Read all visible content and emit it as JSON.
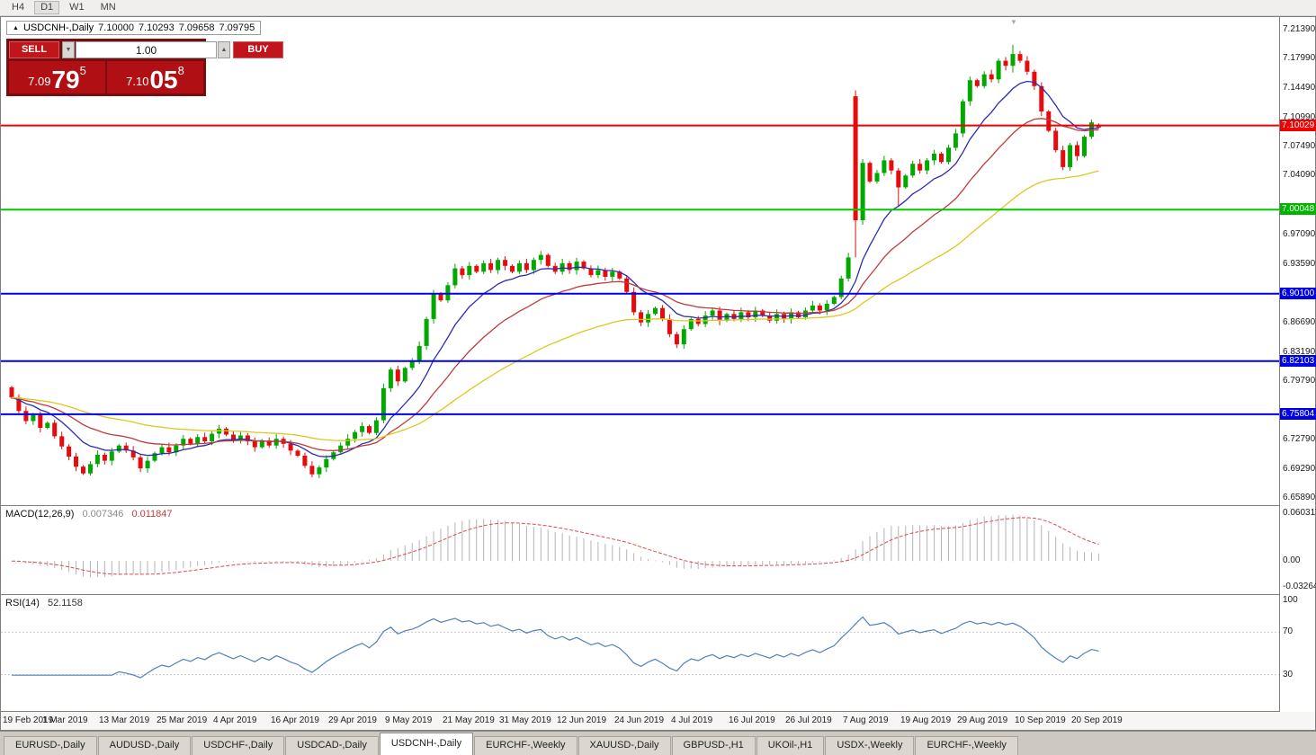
{
  "toolbar": {
    "timeframes": [
      "H4",
      "D1",
      "W1",
      "MN"
    ],
    "active": "D1"
  },
  "chart_header": {
    "expander_icon": "▲",
    "shift_marker_icon": "▼",
    "symbol": "USDCNH-,Daily",
    "open": "7.10000",
    "high": "7.10293",
    "low": "7.09658",
    "close": "7.09795"
  },
  "trade_panel": {
    "sell_label": "SELL",
    "buy_label": "BUY",
    "lot_value": "1.00",
    "lot_down_icon": "▼",
    "lot_up_icon": "▲",
    "sell_price": {
      "base": "7.09",
      "big": "79",
      "sup": "5"
    },
    "buy_price": {
      "base": "7.10",
      "big": "05",
      "sup": "8"
    }
  },
  "price_axis": {
    "ticks": [
      "7.21390",
      "7.17990",
      "7.14490",
      "7.10990",
      "7.07490",
      "7.04090",
      "6.97090",
      "6.93590",
      "6.86690",
      "6.83190",
      "6.79790",
      "6.72790",
      "6.69290",
      "6.65890"
    ],
    "badges": [
      {
        "price": 7.10029,
        "text": "7.10029",
        "color": "#f00000"
      },
      {
        "price": 7.00048,
        "text": "7.00048",
        "color": "#00b400"
      },
      {
        "price": 6.901,
        "text": "6.90100",
        "color": "#0000e8"
      },
      {
        "price": 6.82103,
        "text": "6.82103",
        "color": "#0000e8"
      },
      {
        "price": 6.75804,
        "text": "6.75804",
        "color": "#0000e8"
      }
    ]
  },
  "macd": {
    "label": "MACD(12,26,9)",
    "value_macd": "0.007346",
    "value_signal": "0.011847",
    "axis": [
      "0.060317",
      "0.00",
      "-0.032648"
    ],
    "histogram_color": "#b4b4b4",
    "signal_color": "#dd4b4b"
  },
  "rsi": {
    "label": "RSI(14)",
    "value": "52.1158",
    "axis": [
      100,
      70,
      30
    ],
    "levels": [
      70,
      30
    ],
    "line_color": "#4f81bd"
  },
  "tab_bar": {
    "tabs": [
      "EURUSD-,Daily",
      "AUDUSD-,Daily",
      "USDCHF-,Daily",
      "USDCAD-,Daily",
      "USDCNH-,Daily",
      "EURCHF-,Weekly",
      "XAUUSD-,Daily",
      "GBPUSD-,H1",
      "UKOil-,H1",
      "USDX-,Weekly",
      "EURCHF-,Weekly"
    ],
    "active_index": 4
  },
  "chart_data": {
    "type": "candlestick",
    "title": "USDCNH-,Daily",
    "ylim": [
      6.6504,
      7.2288
    ],
    "x_labels": [
      "19 Feb 2019",
      "1 Mar 2019",
      "13 Mar 2019",
      "25 Mar 2019",
      "4 Apr 2019",
      "16 Apr 2019",
      "29 Apr 2019",
      "9 May 2019",
      "21 May 2019",
      "31 May 2019",
      "12 Jun 2019",
      "24 Jun 2019",
      "4 Jul 2019",
      "16 Jul 2019",
      "26 Jul 2019",
      "7 Aug 2019",
      "19 Aug 2019",
      "29 Aug 2019",
      "10 Sep 2019",
      "20 Sep 2019"
    ],
    "bars_per_label": 8,
    "first_open": 6.79,
    "closes": [
      6.778,
      6.762,
      6.75,
      6.757,
      6.742,
      6.748,
      6.732,
      6.72,
      6.708,
      6.696,
      6.688,
      6.699,
      6.71,
      6.703,
      6.714,
      6.721,
      6.715,
      6.707,
      6.694,
      6.703,
      6.712,
      6.719,
      6.713,
      6.721,
      6.729,
      6.723,
      6.731,
      6.726,
      6.735,
      6.741,
      6.734,
      6.727,
      6.733,
      6.726,
      6.719,
      6.727,
      6.721,
      6.729,
      6.723,
      6.715,
      6.709,
      6.697,
      6.687,
      6.695,
      6.705,
      6.713,
      6.721,
      6.729,
      6.737,
      6.744,
      6.736,
      6.751,
      6.789,
      6.811,
      6.797,
      6.813,
      6.821,
      6.839,
      6.871,
      6.901,
      6.893,
      6.911,
      6.931,
      6.923,
      6.934,
      6.927,
      6.937,
      6.929,
      6.941,
      6.934,
      6.927,
      6.937,
      6.929,
      6.941,
      6.947,
      6.934,
      6.927,
      6.937,
      6.929,
      6.939,
      6.931,
      6.923,
      6.929,
      6.921,
      6.927,
      6.919,
      6.903,
      6.879,
      6.867,
      6.877,
      6.884,
      6.871,
      6.853,
      6.841,
      6.859,
      6.871,
      6.865,
      6.875,
      6.881,
      6.869,
      6.877,
      6.871,
      6.879,
      6.873,
      6.881,
      6.875,
      6.869,
      6.877,
      6.871,
      6.879,
      6.873,
      6.881,
      6.887,
      6.881,
      6.889,
      6.897,
      6.919,
      6.944,
      6.988,
      7.056,
      7.034,
      7.044,
      7.059,
      7.047,
      7.027,
      7.041,
      7.055,
      7.047,
      7.059,
      7.067,
      7.057,
      7.074,
      7.091,
      7.129,
      7.154,
      7.147,
      7.161,
      7.155,
      7.177,
      7.171,
      7.185,
      7.177,
      7.164,
      7.147,
      7.117,
      7.094,
      7.071,
      7.051,
      7.077,
      7.064,
      7.087,
      7.104,
      7.098
    ],
    "special_bars": {
      "118": {
        "o": 7.135,
        "h": 7.142,
        "l": 6.944,
        "c": 6.988
      },
      "124": {
        "o": 7.047,
        "h": 7.05,
        "l": 7.005,
        "c": 7.027
      },
      "140": {
        "o": 7.171,
        "h": 7.196,
        "l": 7.163,
        "c": 7.185
      },
      "152": {
        "o": 7.1,
        "h": 7.10293,
        "l": 7.09658,
        "c": 7.09795
      }
    },
    "up_color": "#00a800",
    "down_color": "#e60c0c",
    "moving_averages": [
      {
        "period": 10,
        "color": "#2b2bb4"
      },
      {
        "period": 22,
        "color": "#c03a3a"
      },
      {
        "period": 50,
        "color": "#ddc81e"
      }
    ],
    "levels": [
      {
        "price": 7.10029,
        "color": "#f00000",
        "width": 2
      },
      {
        "price": 7.00048,
        "color": "#00c800",
        "width": 2
      },
      {
        "price": 6.901,
        "color": "#0000e8",
        "width": 2
      },
      {
        "price": 6.82103,
        "color": "#0000e8",
        "width": 2
      },
      {
        "price": 6.75804,
        "color": "#0000e8",
        "width": 2
      }
    ]
  }
}
